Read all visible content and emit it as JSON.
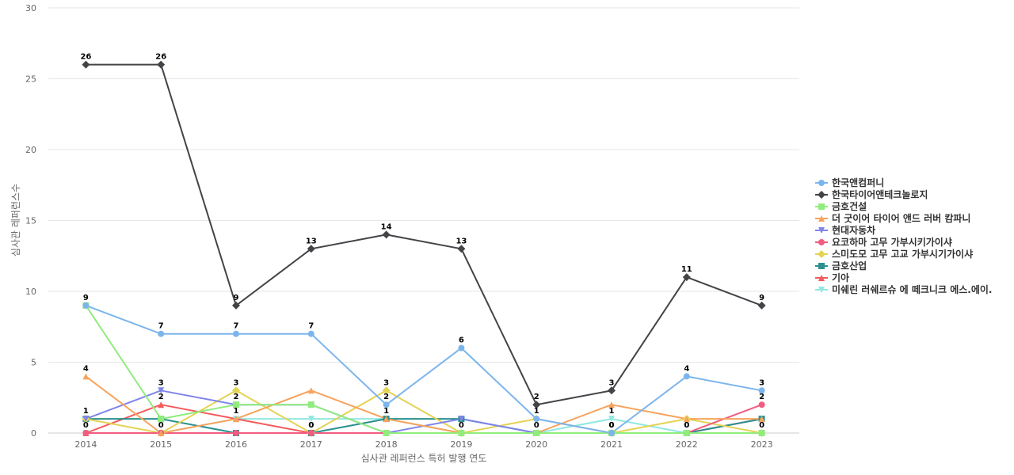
{
  "chart_data": {
    "type": "line",
    "title": "",
    "xlabel": "심사관 레퍼런스 특허 발행 연도",
    "ylabel": "심사관 레퍼런스수",
    "ylim": [
      0,
      30
    ],
    "yticks": [
      0,
      5,
      10,
      15,
      20,
      25,
      30
    ],
    "categories": [
      "2014",
      "2015",
      "2016",
      "2017",
      "2018",
      "2019",
      "2020",
      "2021",
      "2022",
      "2023"
    ],
    "grid": true,
    "legend_position": "right",
    "series": [
      {
        "name": "한국앤컴퍼니",
        "color": "#7cb5ec",
        "marker": "circle",
        "values": [
          9,
          7,
          7,
          7,
          2,
          6,
          1,
          0,
          4,
          3
        ]
      },
      {
        "name": "한국타이어앤테크놀로지",
        "color": "#434348",
        "marker": "diamond",
        "values": [
          26,
          26,
          9,
          13,
          14,
          13,
          2,
          3,
          11,
          9
        ]
      },
      {
        "name": "금호건설",
        "color": "#90ed7d",
        "marker": "square",
        "values": [
          9,
          1,
          2,
          2,
          0,
          0,
          0,
          0,
          0,
          0
        ]
      },
      {
        "name": "더 굿이어 타이어 앤드 러버 캄파니",
        "color": "#f7a35c",
        "marker": "triangle",
        "values": [
          4,
          0,
          1,
          3,
          1,
          0,
          0,
          2,
          1,
          1
        ]
      },
      {
        "name": "현대자동차",
        "color": "#8085e9",
        "marker": "triangle-down",
        "values": [
          1,
          3,
          2,
          2,
          0,
          1,
          0,
          0,
          0,
          0
        ]
      },
      {
        "name": "요코하마 고무 가부시키가이샤",
        "color": "#f15c80",
        "marker": "circle",
        "values": [
          0,
          0,
          0,
          0,
          0,
          0,
          0,
          0,
          0,
          2
        ]
      },
      {
        "name": "스미도모 고무 고교 가부시기가이샤",
        "color": "#e4d354",
        "marker": "diamond",
        "values": [
          1,
          0,
          3,
          0,
          3,
          0,
          1,
          0,
          1,
          0
        ]
      },
      {
        "name": "금호산업",
        "color": "#2b908f",
        "marker": "square",
        "values": [
          1,
          1,
          0,
          0,
          1,
          1,
          0,
          0,
          0,
          1
        ]
      },
      {
        "name": "기아",
        "color": "#f45b5b",
        "marker": "triangle",
        "values": [
          0,
          2,
          1,
          0,
          0,
          0,
          0,
          0,
          0,
          1
        ]
      },
      {
        "name": "미쉐린 러쉐르슈 에 떼크니크 에스.에이.",
        "color": "#91e8e1",
        "marker": "triangle-down",
        "values": [
          0,
          0,
          1,
          1,
          1,
          0,
          0,
          1,
          0,
          0
        ]
      }
    ],
    "labeled_points": [
      {
        "series": 1,
        "indices": [
          0,
          1,
          2,
          3,
          4,
          5,
          6,
          7,
          8,
          9
        ]
      },
      {
        "series": 0,
        "indices": [
          0,
          1,
          2,
          3,
          4,
          5,
          6,
          7,
          8,
          9
        ]
      },
      {
        "series": 3,
        "indices": [
          0
        ]
      },
      {
        "series": 4,
        "indices": [
          0,
          1,
          7
        ]
      },
      {
        "series": 6,
        "indices": [
          2,
          3,
          4
        ]
      },
      {
        "series": 5,
        "indices": [
          9
        ]
      },
      {
        "series": 8,
        "indices": [
          1,
          3,
          7,
          8
        ]
      },
      {
        "series": 9,
        "indices": [
          0,
          1,
          2,
          4,
          5,
          6,
          7,
          8,
          9
        ]
      },
      {
        "series": 2,
        "indices": [
          2
        ]
      }
    ]
  }
}
